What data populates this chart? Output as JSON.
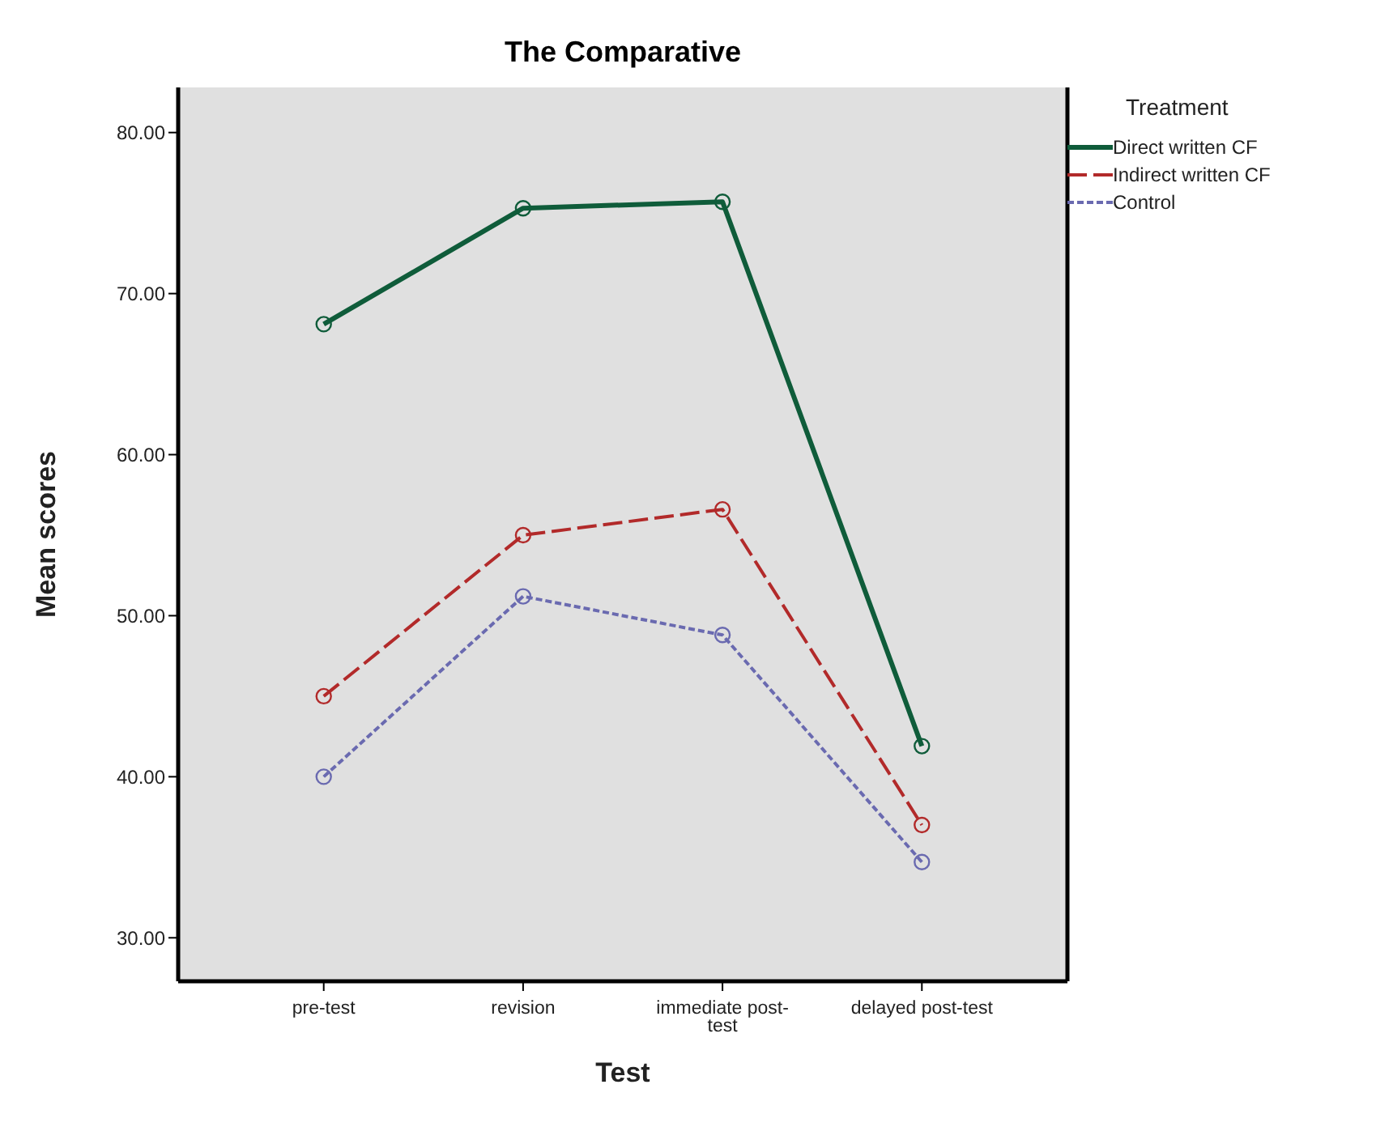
{
  "chart_data": {
    "type": "line",
    "title": "The Comparative",
    "xlabel": "Test",
    "ylabel": "Mean scores",
    "legend_title": "Treatment",
    "categories": [
      "pre-test",
      "revision",
      "immediate post-test",
      "delayed post-test"
    ],
    "series": [
      {
        "name": "Direct written CF",
        "color": "#0f5c3a",
        "line_style": "solid",
        "values": [
          68.1,
          75.3,
          75.7,
          41.9
        ]
      },
      {
        "name": "Indirect written CF",
        "color": "#b22a2a",
        "line_style": "dashed",
        "values": [
          45.0,
          55.0,
          56.6,
          37.0
        ]
      },
      {
        "name": "Control",
        "color": "#6a6ab0",
        "line_style": "dotted",
        "values": [
          40.0,
          51.2,
          48.8,
          34.7
        ]
      }
    ],
    "ylim": [
      27.3,
      82.8
    ],
    "yticks": [
      {
        "value": 30,
        "label": "30.00"
      },
      {
        "value": 40,
        "label": "40.00"
      },
      {
        "value": 50,
        "label": "50.00"
      },
      {
        "value": 60,
        "label": "60.00"
      },
      {
        "value": 70,
        "label": "70.00"
      },
      {
        "value": 80,
        "label": "80.00"
      }
    ],
    "grid": false,
    "legend": "top right",
    "marker": "circle"
  }
}
